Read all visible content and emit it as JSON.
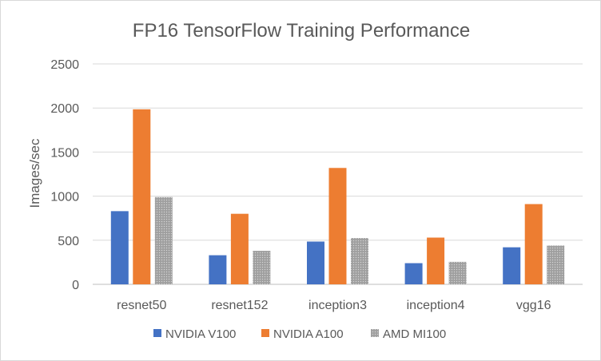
{
  "chart_data": {
    "type": "bar",
    "title": "FP16 TensorFlow Training Performance",
    "xlabel": "",
    "ylabel": "Images/sec",
    "ylim": [
      0,
      2500
    ],
    "yticks": [
      0,
      500,
      1000,
      1500,
      2000,
      2500
    ],
    "ytick_labels": [
      "0",
      "500",
      "1000",
      "1500",
      "2000",
      "2500"
    ],
    "grid": true,
    "legend_position": "bottom",
    "categories": [
      "resnet50",
      "resnet152",
      "inception3",
      "inception4",
      "vgg16"
    ],
    "series": [
      {
        "name": "NVIDIA V100",
        "color": "#4472C4",
        "pattern": "solid",
        "values": [
          830,
          330,
          485,
          240,
          420
        ]
      },
      {
        "name": "NVIDIA A100",
        "color": "#ED7D31",
        "pattern": "solid",
        "values": [
          1985,
          800,
          1320,
          530,
          910
        ]
      },
      {
        "name": "AMD MI100",
        "color": "#A5A5A5",
        "pattern": "dotted",
        "values": [
          990,
          380,
          525,
          255,
          440
        ]
      }
    ]
  }
}
